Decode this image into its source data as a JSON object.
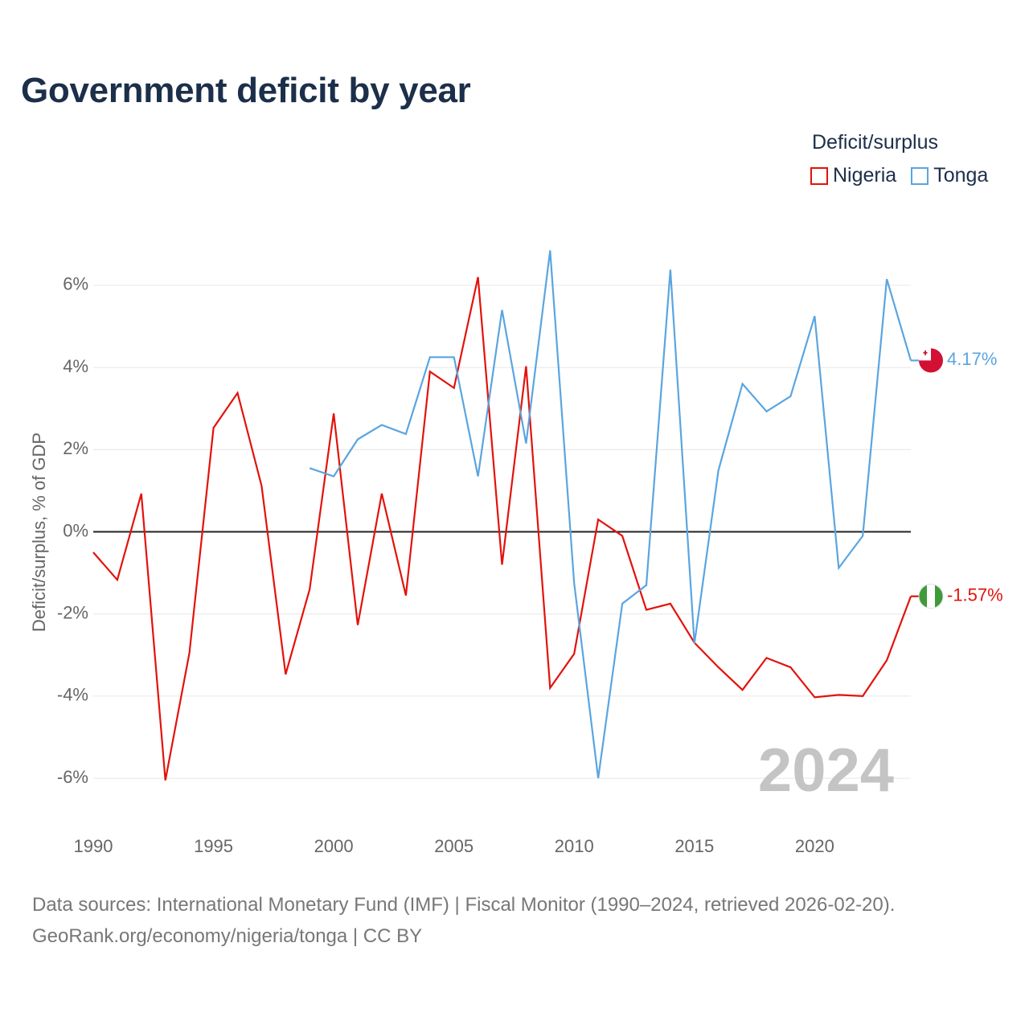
{
  "title": "Government deficit by year",
  "legend": {
    "title": "Deficit/surplus",
    "items": [
      {
        "name": "Nigeria",
        "color": "#e3120b"
      },
      {
        "name": "Tonga",
        "color": "#5aa5e0"
      }
    ]
  },
  "sources": {
    "line1": "Data sources: International Monetary Fund (IMF) | Fiscal Monitor (1990–2024, retrieved 2026-02-20).",
    "line2": "GeoRank.org/economy/nigeria/tonga | CC BY"
  },
  "chart_data": {
    "type": "line",
    "title": "Government deficit by year",
    "xlabel": "",
    "ylabel": "Deficit/surplus, % of GDP",
    "xlim": [
      1990,
      2024
    ],
    "ylim": [
      -7,
      7
    ],
    "xticks": [
      1990,
      1995,
      2000,
      2005,
      2010,
      2015,
      2020
    ],
    "yticks": [
      -6,
      -4,
      -2,
      0,
      2,
      4,
      6
    ],
    "ytick_labels": [
      "-6%",
      "-4%",
      "-2%",
      "0%",
      "2%",
      "4%",
      "6%"
    ],
    "current_year_label": "2024",
    "series": [
      {
        "name": "Nigeria",
        "color": "#e3120b",
        "end_label": "-1.57%",
        "x": [
          1990,
          1991,
          1992,
          1993,
          1994,
          1995,
          1996,
          1997,
          1998,
          1999,
          2000,
          2001,
          2002,
          2003,
          2004,
          2005,
          2006,
          2007,
          2008,
          2009,
          2010,
          2011,
          2012,
          2013,
          2014,
          2015,
          2016,
          2017,
          2018,
          2019,
          2020,
          2021,
          2022,
          2023,
          2024
        ],
        "values": [
          -0.5,
          -1.17,
          0.93,
          -6.05,
          -2.95,
          2.53,
          3.38,
          1.12,
          -3.47,
          -1.4,
          2.88,
          -2.27,
          0.93,
          -1.55,
          3.9,
          3.5,
          6.2,
          -0.8,
          4.03,
          -3.8,
          -2.97,
          0.3,
          -0.1,
          -1.9,
          -1.75,
          -2.7,
          -3.3,
          -3.85,
          -3.07,
          -3.3,
          -4.03,
          -3.97,
          -4.0,
          -3.13,
          -1.57
        ]
      },
      {
        "name": "Tonga",
        "color": "#5aa5e0",
        "end_label": "4.17%",
        "x": [
          1999,
          2000,
          2001,
          2002,
          2003,
          2004,
          2005,
          2006,
          2007,
          2008,
          2009,
          2010,
          2011,
          2012,
          2013,
          2014,
          2015,
          2016,
          2017,
          2018,
          2019,
          2020,
          2021,
          2022,
          2023,
          2024
        ],
        "values": [
          1.55,
          1.35,
          2.25,
          2.6,
          2.38,
          4.25,
          4.25,
          1.35,
          5.4,
          2.15,
          6.85,
          -1.25,
          -6.0,
          -1.75,
          -1.3,
          6.38,
          -2.72,
          1.5,
          3.6,
          2.93,
          3.3,
          5.25,
          -0.88,
          -0.1,
          6.15,
          4.17
        ]
      }
    ]
  }
}
